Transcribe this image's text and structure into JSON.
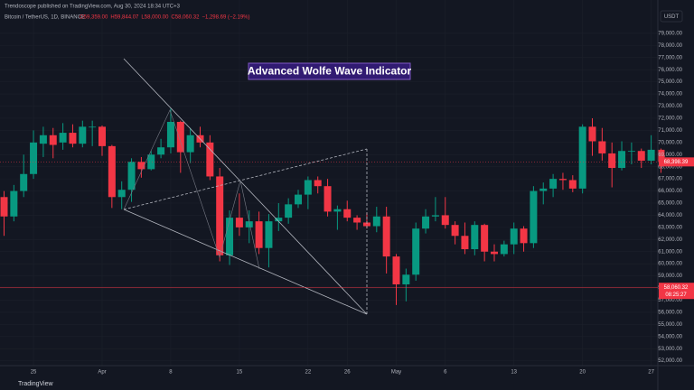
{
  "chart_data": {
    "type": "candlestick",
    "source": "Trendoscope published on TradingView.com, Aug 30, 2024 18:34 UTC+3",
    "symbol": "Bitcoin / TetherUS, 1D, BINANCE",
    "header_values": [
      "O59,359.00",
      "H59,844.07",
      "L58,000.00",
      "C58,060.32",
      "−1,298.69 (−2.19%)"
    ],
    "title": "Advanced Wolfe Wave Indicator",
    "currency": "USDT",
    "brand": "TradingView",
    "last_price": {
      "value": 68398.39,
      "label": "68,398.39"
    },
    "crosshair": {
      "value": 58060.32,
      "label": "58,060.32",
      "time": "08:25:27"
    },
    "up_color": "#089981",
    "down_color": "#f23645",
    "categories": [
      null,
      null,
      null,
      "25",
      null,
      null,
      null,
      null,
      null,
      null,
      "Apr",
      null,
      null,
      null,
      null,
      null,
      null,
      "8",
      null,
      null,
      null,
      null,
      null,
      null,
      "15",
      null,
      null,
      null,
      null,
      null,
      null,
      "22",
      null,
      null,
      null,
      "26",
      null,
      null,
      null,
      null,
      "May",
      null,
      null,
      null,
      null,
      "6",
      null,
      null,
      null,
      null,
      null,
      null,
      "13",
      null,
      null,
      null,
      null,
      null,
      null,
      "20",
      null,
      null,
      null,
      null,
      null,
      null,
      "27",
      null
    ],
    "open": [
      65500,
      63900,
      66000,
      67400,
      69900,
      70600,
      70000,
      70800,
      69900,
      71300,
      71300,
      69700,
      65500,
      66100,
      68400,
      67800,
      69000,
      69600,
      71700,
      69200,
      70600,
      70000,
      67200,
      60700,
      63800,
      63000,
      63500,
      61300,
      63500,
      63800,
      64900,
      65700,
      66900,
      66400,
      64300,
      64500,
      63800,
      63400,
      63100,
      63900,
      60600,
      58300,
      59100,
      62900,
      63900,
      64000,
      63200,
      62300,
      61200,
      63200,
      61000,
      60800,
      61600,
      62900,
      61700,
      66000,
      66200,
      67000,
      66900,
      66200,
      71300,
      70100,
      69100,
      67900,
      69300,
      69300,
      68500,
      69400
    ],
    "high": [
      66000,
      66500,
      69000,
      71000,
      71300,
      71200,
      71600,
      71500,
      71800,
      71800,
      71400,
      69800,
      66800,
      68700,
      68800,
      69300,
      70300,
      72800,
      71800,
      71200,
      71300,
      70600,
      67900,
      64400,
      65800,
      64400,
      64300,
      64100,
      65000,
      65400,
      66100,
      67200,
      67200,
      67000,
      64800,
      65200,
      64000,
      64200,
      64700,
      64700,
      60800,
      59600,
      63400,
      64500,
      65500,
      65500,
      63500,
      63400,
      63500,
      63300,
      61600,
      61900,
      63400,
      63100,
      66400,
      66700,
      67400,
      67500,
      67300,
      71500,
      72000,
      71200,
      70000,
      70100,
      70000,
      69500,
      70600,
      69500
    ],
    "low": [
      62300,
      63500,
      65500,
      67000,
      68800,
      68700,
      69400,
      69600,
      69600,
      69700,
      68900,
      64600,
      64500,
      65100,
      67100,
      67700,
      68700,
      69100,
      67500,
      68300,
      69600,
      66900,
      60200,
      59900,
      62300,
      61700,
      60800,
      59700,
      62700,
      63300,
      64600,
      64500,
      65800,
      63900,
      62800,
      63500,
      62800,
      62900,
      62600,
      59200,
      56600,
      56900,
      58600,
      62500,
      63500,
      62900,
      61600,
      60800,
      60700,
      60200,
      60200,
      60600,
      60800,
      61000,
      61300,
      64900,
      65500,
      66100,
      65900,
      65800,
      68900,
      68500,
      66300,
      67700,
      68200,
      67900,
      68200,
      67500
    ],
    "close": [
      63900,
      66000,
      67400,
      70000,
      70600,
      69800,
      70800,
      69900,
      71300,
      71300,
      69700,
      65500,
      66100,
      68400,
      67800,
      69000,
      69600,
      71700,
      69200,
      70600,
      70000,
      67200,
      60700,
      63800,
      63000,
      63500,
      61300,
      63500,
      63800,
      64900,
      65700,
      66900,
      66400,
      64300,
      64500,
      63800,
      63400,
      63100,
      63900,
      60600,
      58300,
      59100,
      62900,
      63900,
      64000,
      63200,
      62300,
      61200,
      63200,
      61000,
      60800,
      61600,
      62900,
      61700,
      66000,
      66200,
      67000,
      66900,
      66200,
      71300,
      70100,
      69100,
      67900,
      69300,
      69300,
      68500,
      69400,
      68398.39
    ],
    "ylim": [
      51600,
      81750
    ],
    "yticks": [
      {
        "value": 52000,
        "label": "52,000.00"
      },
      {
        "value": 53000,
        "label": "53,000.00"
      },
      {
        "value": 54000,
        "label": "54,000.00"
      },
      {
        "value": 55000,
        "label": "55,000.00"
      },
      {
        "value": 56000,
        "label": "56,000.00"
      },
      {
        "value": 57000,
        "label": "57,000.00"
      },
      {
        "value": 58000,
        "label": "58,000.00"
      },
      {
        "value": 59000,
        "label": "59,000.00"
      },
      {
        "value": 60000,
        "label": "60,000.00"
      },
      {
        "value": 61000,
        "label": "61,000.00"
      },
      {
        "value": 62000,
        "label": "62,000.00"
      },
      {
        "value": 63000,
        "label": "63,000.00"
      },
      {
        "value": 64000,
        "label": "64,000.00"
      },
      {
        "value": 65000,
        "label": "65,000.00"
      },
      {
        "value": 66000,
        "label": "66,000.00"
      },
      {
        "value": 67000,
        "label": "67,000.00"
      },
      {
        "value": 68000,
        "label": "68,000.00"
      },
      {
        "value": 69000,
        "label": "69,000.00"
      },
      {
        "value": 70000,
        "label": "70,000.00"
      },
      {
        "value": 71000,
        "label": "71,000.00"
      },
      {
        "value": 72000,
        "label": "72,000.00"
      },
      {
        "value": 73000,
        "label": "73,000.00"
      },
      {
        "value": 74000,
        "label": "74,000.00"
      },
      {
        "value": 75000,
        "label": "75,000.00"
      },
      {
        "value": 76000,
        "label": "76,000.00"
      },
      {
        "value": 77000,
        "label": "77,000.00"
      },
      {
        "value": 78000,
        "label": "78,000.00"
      },
      {
        "value": 79000,
        "label": "79,000.00"
      }
    ],
    "grid": true
  }
}
